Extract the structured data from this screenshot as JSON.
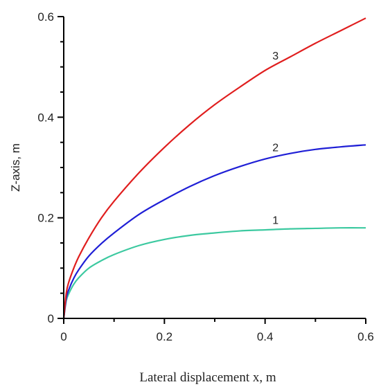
{
  "chart_data": {
    "type": "line",
    "title": "",
    "xlabel": "Lateral displacement x, m",
    "ylabel": "Z-axis, m",
    "xlim": [
      0,
      0.6
    ],
    "ylim": [
      0,
      0.6
    ],
    "x_ticks": [
      0,
      0.2,
      0.4,
      0.6
    ],
    "x_tick_labels": [
      "0",
      "0.2",
      "0.4",
      "0.6"
    ],
    "y_ticks": [
      0,
      0.2,
      0.4,
      0.6
    ],
    "y_tick_labels": [
      "0",
      "0.2",
      "0.4",
      "0.6"
    ],
    "grid": false,
    "series": [
      {
        "label": "1",
        "color": "#3cc9a0",
        "x": [
          0,
          0.005,
          0.01,
          0.02,
          0.03,
          0.05,
          0.075,
          0.1,
          0.15,
          0.2,
          0.25,
          0.3,
          0.35,
          0.4,
          0.45,
          0.5,
          0.55,
          0.6
        ],
        "y": [
          0,
          0.035,
          0.049,
          0.068,
          0.081,
          0.1,
          0.115,
          0.127,
          0.145,
          0.157,
          0.165,
          0.17,
          0.174,
          0.176,
          0.178,
          0.179,
          0.18,
          0.18
        ]
      },
      {
        "label": "2",
        "color": "#1f1fd6",
        "x": [
          0,
          0.005,
          0.01,
          0.02,
          0.03,
          0.05,
          0.075,
          0.1,
          0.15,
          0.2,
          0.25,
          0.3,
          0.35,
          0.4,
          0.45,
          0.5,
          0.55,
          0.6
        ],
        "y": [
          0,
          0.04,
          0.057,
          0.08,
          0.097,
          0.124,
          0.149,
          0.17,
          0.207,
          0.236,
          0.262,
          0.284,
          0.302,
          0.317,
          0.328,
          0.336,
          0.341,
          0.345
        ]
      },
      {
        "label": "3",
        "color": "#e01e1e",
        "x": [
          0,
          0.005,
          0.01,
          0.02,
          0.03,
          0.05,
          0.075,
          0.1,
          0.15,
          0.2,
          0.25,
          0.3,
          0.35,
          0.4,
          0.45,
          0.5,
          0.55,
          0.6
        ],
        "y": [
          0,
          0.05,
          0.072,
          0.1,
          0.123,
          0.16,
          0.2,
          0.233,
          0.29,
          0.34,
          0.385,
          0.425,
          0.46,
          0.493,
          0.52,
          0.547,
          0.572,
          0.597
        ]
      }
    ]
  }
}
